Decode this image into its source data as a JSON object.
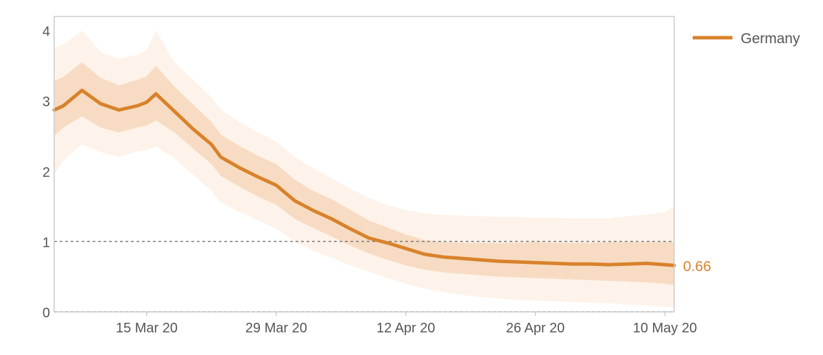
{
  "chart_data": {
    "type": "line",
    "title": "",
    "xlabel": "",
    "ylabel": "",
    "ylim": [
      0,
      4.2
    ],
    "xlim": [
      "2020-03-05",
      "2020-05-11"
    ],
    "yticks": [
      "0",
      "1",
      "2",
      "3",
      "4"
    ],
    "xticks": [
      {
        "date": "2020-03-15",
        "label": "15 Mar 20"
      },
      {
        "date": "2020-03-29",
        "label": "29 Mar 20"
      },
      {
        "date": "2020-04-12",
        "label": "12 Apr 20"
      },
      {
        "date": "2020-04-26",
        "label": "26 Apr 20"
      },
      {
        "date": "2020-05-10",
        "label": "10 May 20"
      }
    ],
    "reference_lines": [
      0,
      1
    ],
    "grid": false,
    "legend": "top-right",
    "end_label": "0.66",
    "series": [
      {
        "name": "Germany",
        "color": "#d9822b",
        "x": [
          "2020-03-05",
          "2020-03-06",
          "2020-03-08",
          "2020-03-10",
          "2020-03-12",
          "2020-03-14",
          "2020-03-15",
          "2020-03-16",
          "2020-03-18",
          "2020-03-20",
          "2020-03-22",
          "2020-03-23",
          "2020-03-25",
          "2020-03-27",
          "2020-03-29",
          "2020-03-31",
          "2020-04-02",
          "2020-04-04",
          "2020-04-06",
          "2020-04-08",
          "2020-04-10",
          "2020-04-12",
          "2020-04-14",
          "2020-04-16",
          "2020-04-18",
          "2020-04-20",
          "2020-04-22",
          "2020-04-24",
          "2020-04-26",
          "2020-04-28",
          "2020-04-30",
          "2020-05-02",
          "2020-05-04",
          "2020-05-06",
          "2020-05-08",
          "2020-05-10",
          "2020-05-11"
        ],
        "values": [
          2.87,
          2.93,
          3.15,
          2.96,
          2.87,
          2.93,
          2.98,
          3.1,
          2.85,
          2.6,
          2.38,
          2.2,
          2.05,
          1.92,
          1.8,
          1.58,
          1.44,
          1.32,
          1.18,
          1.05,
          0.98,
          0.9,
          0.82,
          0.78,
          0.76,
          0.74,
          0.72,
          0.71,
          0.7,
          0.69,
          0.68,
          0.68,
          0.67,
          0.68,
          0.69,
          0.67,
          0.66
        ],
        "ci50_low": [
          2.5,
          2.62,
          2.78,
          2.62,
          2.55,
          2.62,
          2.65,
          2.72,
          2.55,
          2.32,
          2.1,
          1.93,
          1.78,
          1.64,
          1.52,
          1.32,
          1.19,
          1.07,
          0.94,
          0.83,
          0.74,
          0.66,
          0.6,
          0.56,
          0.54,
          0.52,
          0.5,
          0.49,
          0.48,
          0.47,
          0.46,
          0.45,
          0.44,
          0.43,
          0.42,
          0.4,
          0.38
        ],
        "ci50_high": [
          3.28,
          3.34,
          3.55,
          3.33,
          3.22,
          3.3,
          3.35,
          3.5,
          3.2,
          2.95,
          2.7,
          2.52,
          2.36,
          2.22,
          2.1,
          1.88,
          1.72,
          1.6,
          1.45,
          1.3,
          1.2,
          1.1,
          1.02,
          0.99,
          0.98,
          0.98,
          0.98,
          0.98,
          0.99,
          0.98,
          0.98,
          0.98,
          0.99,
          0.99,
          0.99,
          0.99,
          0.99
        ]
      }
    ],
    "band90_low": [
      1.95,
      2.15,
      2.38,
      2.27,
      2.2,
      2.28,
      2.3,
      2.35,
      2.18,
      1.95,
      1.72,
      1.55,
      1.42,
      1.3,
      1.18,
      1.0,
      0.87,
      0.77,
      0.66,
      0.57,
      0.48,
      0.4,
      0.33,
      0.28,
      0.24,
      0.21,
      0.19,
      0.17,
      0.16,
      0.15,
      0.14,
      0.13,
      0.12,
      0.1,
      0.09,
      0.07,
      0.06
    ],
    "band90_high": [
      3.75,
      3.8,
      4.0,
      3.7,
      3.6,
      3.65,
      3.72,
      4.0,
      3.55,
      3.3,
      3.05,
      2.88,
      2.7,
      2.55,
      2.42,
      2.2,
      2.04,
      1.9,
      1.75,
      1.62,
      1.52,
      1.45,
      1.4,
      1.38,
      1.37,
      1.36,
      1.35,
      1.35,
      1.34,
      1.34,
      1.33,
      1.33,
      1.33,
      1.36,
      1.38,
      1.42,
      1.5
    ]
  }
}
